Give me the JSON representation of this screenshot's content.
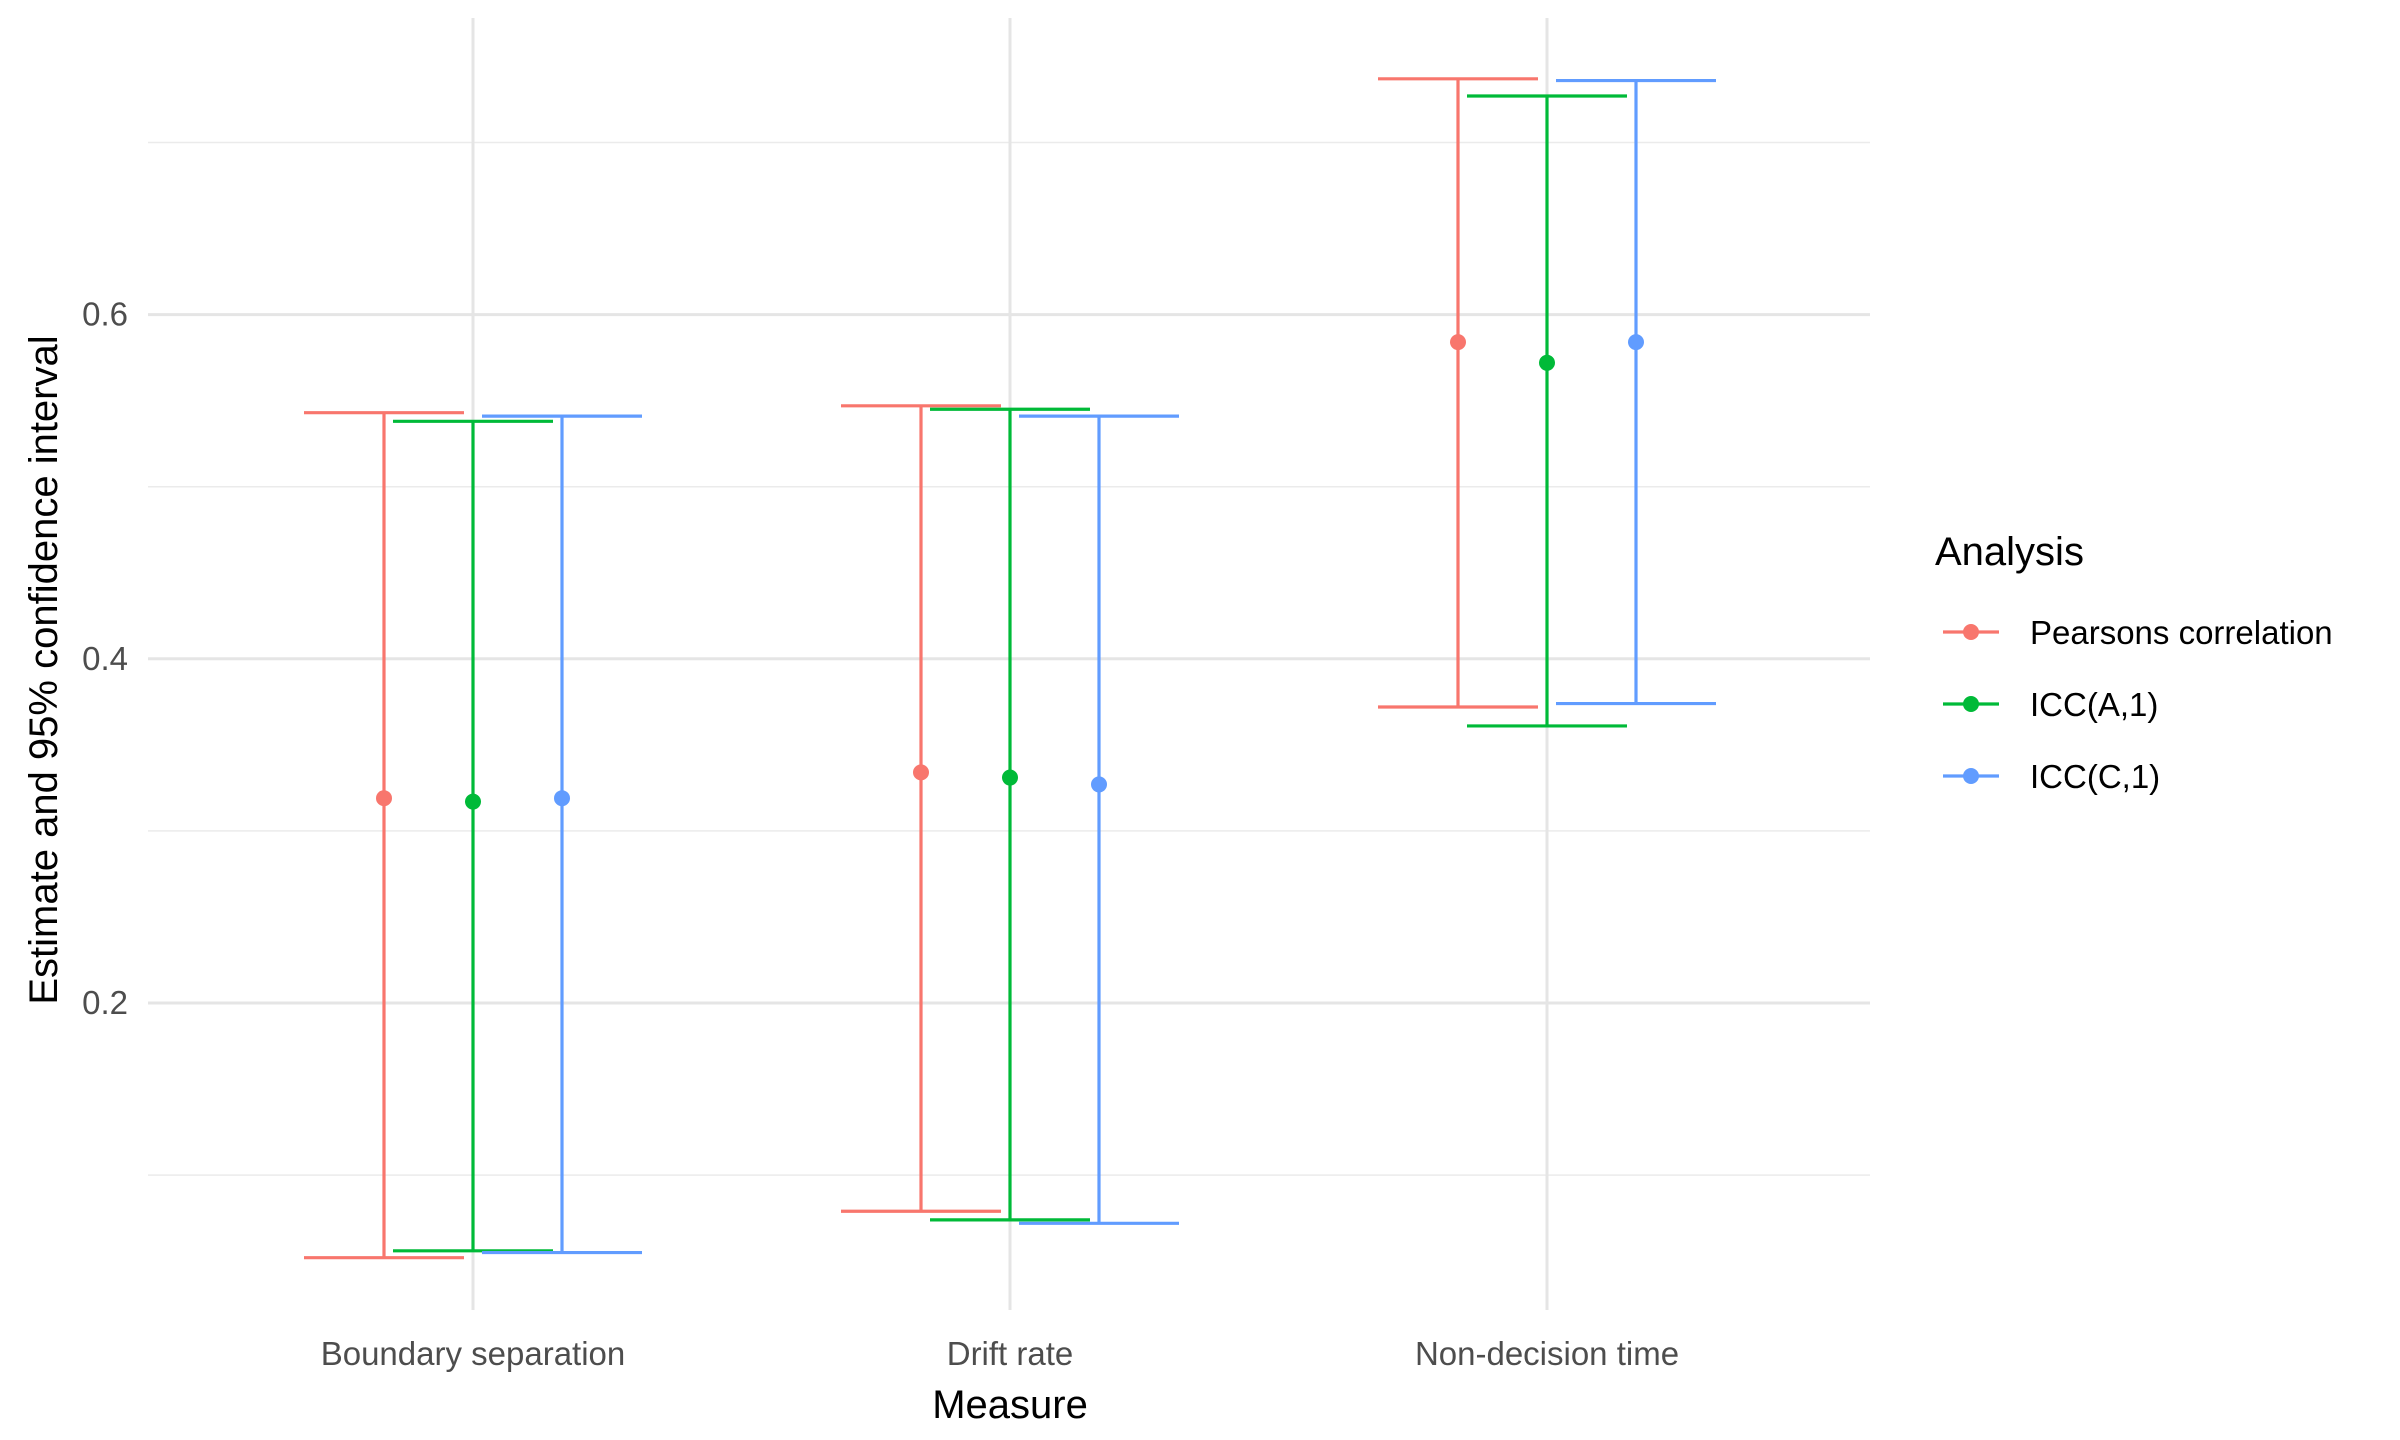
{
  "chart_data": {
    "type": "errorbar",
    "title": "",
    "xlabel": "Measure",
    "ylabel": "Estimate and 95% confidence interval",
    "categories": [
      "Boundary separation",
      "Drift rate",
      "Non-decision time"
    ],
    "ylim": [
      0.045,
      0.75
    ],
    "yticks": [
      0.2,
      0.4,
      0.6
    ],
    "ytick_labels": [
      "0.2",
      "0.4",
      "0.6"
    ],
    "minor_gridlines": [
      0.1,
      0.3,
      0.5,
      0.7
    ],
    "grid": true,
    "legend": {
      "title": "Analysis",
      "position": "right"
    },
    "series": [
      {
        "name": "Pearsons correlation",
        "color": "#F8766D",
        "estimates": [
          0.319,
          0.334,
          0.584
        ],
        "lower": [
          0.052,
          0.079,
          0.372
        ],
        "upper": [
          0.543,
          0.547,
          0.737
        ]
      },
      {
        "name": "ICC(A,1)",
        "color": "#00BA38",
        "estimates": [
          0.317,
          0.331,
          0.572
        ],
        "lower": [
          0.056,
          0.074,
          0.361
        ],
        "upper": [
          0.538,
          0.545,
          0.727
        ]
      },
      {
        "name": "ICC(C,1)",
        "color": "#619CFF",
        "estimates": [
          0.319,
          0.327,
          0.584
        ],
        "lower": [
          0.055,
          0.072,
          0.374
        ],
        "upper": [
          0.541,
          0.541,
          0.736
        ]
      }
    ]
  }
}
